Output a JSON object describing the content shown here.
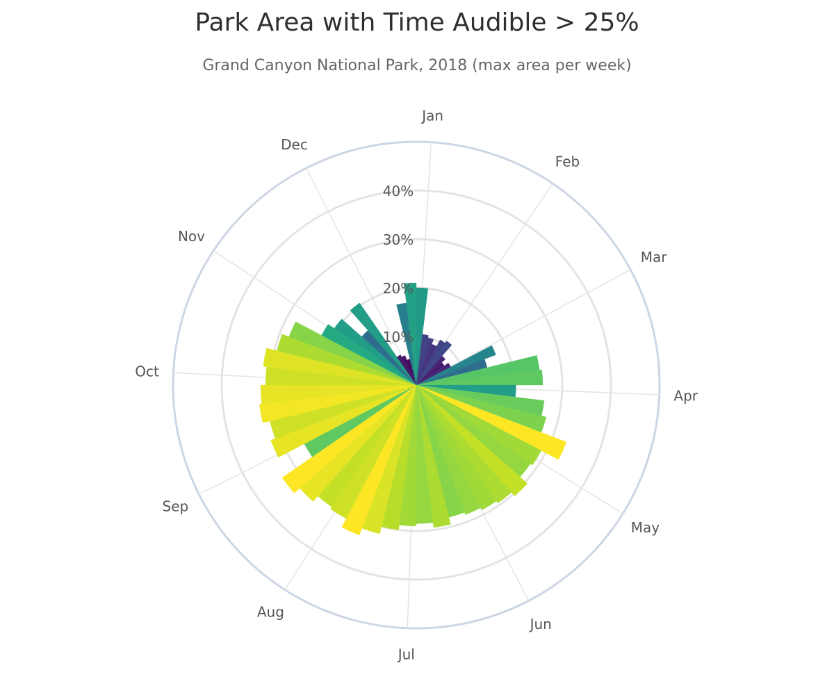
{
  "chart_data": {
    "type": "bar",
    "subtype": "polar-bar",
    "title": "Park Area with Time Audible > 25%",
    "subtitle": "Grand Canyon National Park, 2018 (max area per week)",
    "angular_axis": {
      "tick_labels": [
        "Jan",
        "Feb",
        "Mar",
        "Apr",
        "May",
        "Jun",
        "Jul",
        "Aug",
        "Sep",
        "Oct",
        "Nov",
        "Dec"
      ],
      "tick_angles_deg": [
        3.5,
        34.1,
        61.7,
        92.3,
        121.9,
        152.5,
        182.1,
        212.7,
        243.3,
        272.9,
        303.5,
        333.1
      ],
      "direction": "clockwise",
      "rotation": "top"
    },
    "radial_axis": {
      "range": [
        0,
        50
      ],
      "tick_values": [
        10,
        20,
        30,
        40
      ],
      "tick_labels": [
        "10%",
        "20%",
        "30%",
        "40%"
      ],
      "tick_angle_deg": 0
    },
    "grid": true,
    "colorscale": "viridis",
    "color_range": [
      5,
      33
    ],
    "x_unit": "week",
    "bar_width_deg": 6.923,
    "first_bar_center_deg": 3.46,
    "values": [
      20,
      10.5,
      10,
      9,
      10.5,
      11,
      8,
      7,
      8,
      17.5,
      15,
      25.5,
      26,
      20.5,
      26.5,
      27.5,
      33,
      29,
      28.5,
      30.5,
      29.5,
      29,
      28.5,
      28,
      29.5,
      28.5,
      29,
      30,
      31.5,
      33,
      31,
      30.5,
      32,
      33.5,
      26,
      32,
      31,
      32.5,
      32,
      31,
      31.7,
      29.5,
      28,
      22,
      20.5,
      15,
      20.5,
      7,
      6.5,
      5.5,
      17,
      21
    ]
  },
  "colors": {
    "outer_ring": "#ccd6e4",
    "grid": "#e4e4e4",
    "title": "#2f2f2f",
    "label": "#555555"
  }
}
